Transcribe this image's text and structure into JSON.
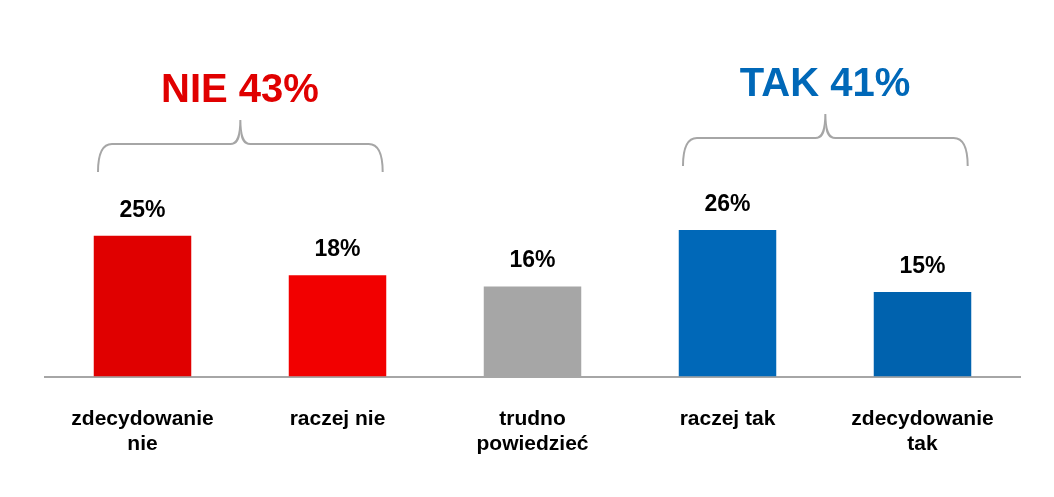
{
  "chart_data": {
    "type": "bar",
    "categories": [
      "zdecydowanie nie",
      "raczej nie",
      "trudno powiedzieć",
      "raczej tak",
      "zdecydowanie tak"
    ],
    "values": [
      25,
      18,
      16,
      26,
      15
    ],
    "colors": [
      "#e00000",
      "#f20000",
      "#a6a6a6",
      "#0068b8",
      "#0062ae"
    ],
    "value_labels": [
      "25%",
      "18%",
      "16%",
      "26%",
      "15%"
    ],
    "annotations": [
      "NIE 43%",
      "TAK 41%"
    ]
  }
}
